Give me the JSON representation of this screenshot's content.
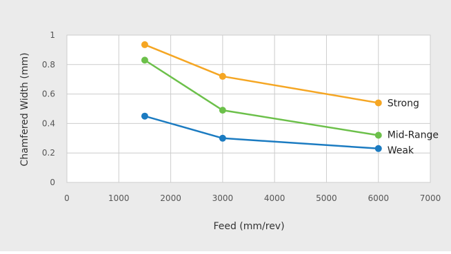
{
  "chart_data": {
    "type": "line",
    "xlabel": "Feed (mm/rev)",
    "ylabel": "Chamfered Width (mm)",
    "xlim": [
      0,
      7000
    ],
    "ylim": [
      0,
      1
    ],
    "x_ticks": [
      0,
      1000,
      2000,
      3000,
      4000,
      5000,
      6000,
      7000
    ],
    "y_ticks": [
      {
        "value": 0,
        "label": "0"
      },
      {
        "value": 0.2,
        "label": "0.2"
      },
      {
        "value": 0.4,
        "label": "0.4"
      },
      {
        "value": 0.6,
        "label": "0.6"
      },
      {
        "value": 0.8,
        "label": "0.8"
      },
      {
        "value": 1,
        "label": "1"
      }
    ],
    "grid": true,
    "series": [
      {
        "name": "Strong",
        "color": "#F5A623",
        "x": [
          1500,
          3000,
          6000
        ],
        "values": [
          0.935,
          0.72,
          0.54
        ]
      },
      {
        "name": "Mid-Range",
        "color": "#6CC04A",
        "x": [
          1500,
          3000,
          6000
        ],
        "values": [
          0.83,
          0.49,
          0.32
        ]
      },
      {
        "name": "Weak",
        "color": "#1B7BC1",
        "x": [
          1500,
          3000,
          6000
        ],
        "values": [
          0.45,
          0.3,
          0.23
        ]
      }
    ],
    "background_color": "#EBEBEB",
    "plot_background_color": "#FFFFFF"
  }
}
